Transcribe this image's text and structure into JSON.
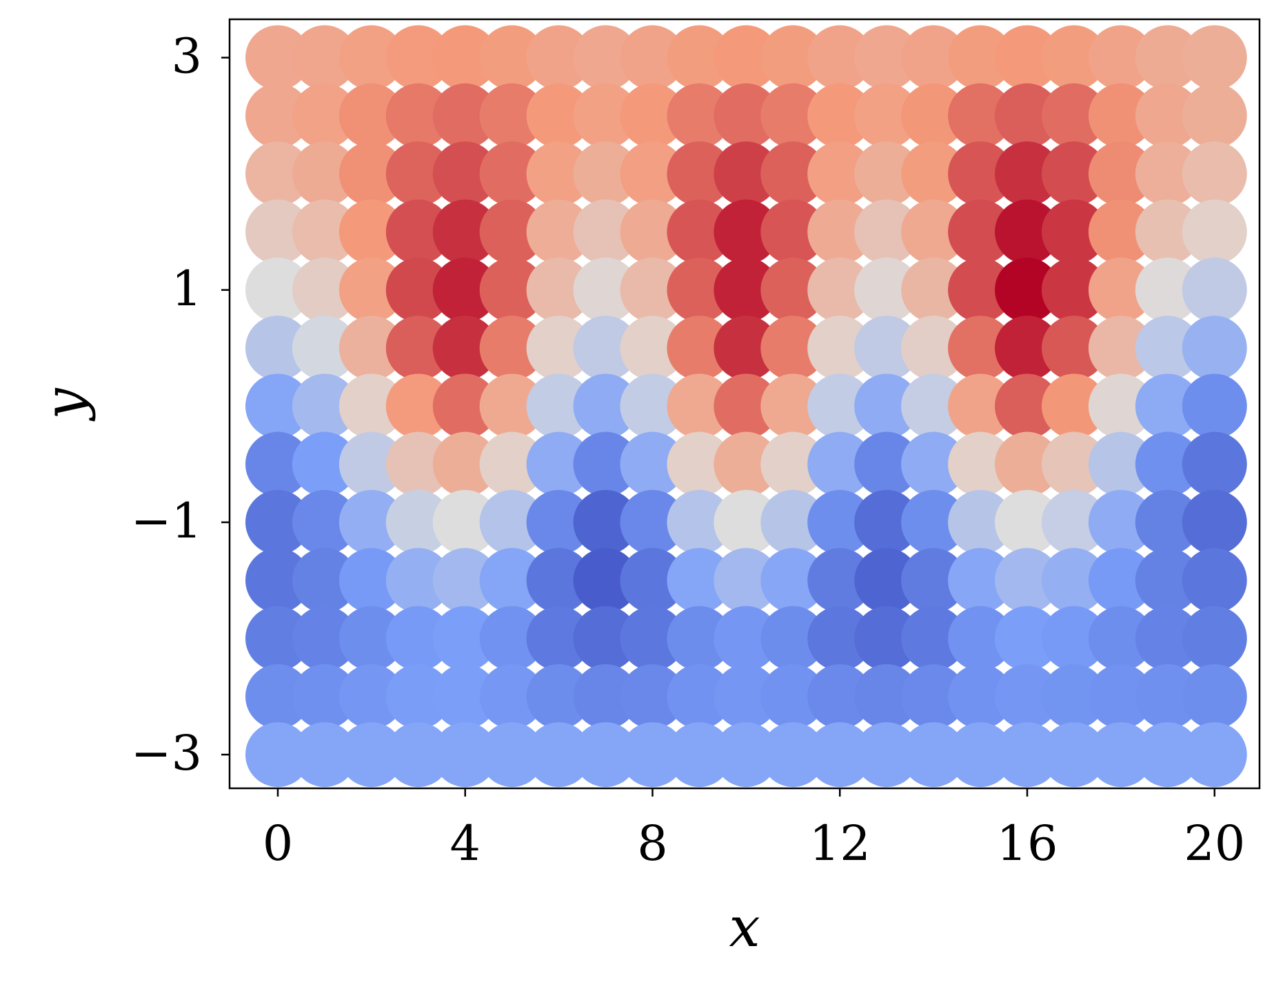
{
  "chart_data": {
    "type": "scatter",
    "xlabel": "x",
    "ylabel": "y",
    "x": [
      0,
      1,
      2,
      3,
      4,
      5,
      6,
      7,
      8,
      9,
      10,
      11,
      12,
      13,
      14,
      15,
      16,
      17,
      18,
      19,
      20
    ],
    "y": [
      3,
      2.5,
      2,
      1.5,
      1,
      0.5,
      0,
      -0.5,
      -1,
      -1.5,
      -2,
      -2.5,
      -3
    ],
    "values": [
      [
        0.4,
        0.41,
        0.45,
        0.49,
        0.5,
        0.48,
        0.43,
        0.4,
        0.43,
        0.48,
        0.5,
        0.48,
        0.43,
        0.4,
        0.43,
        0.48,
        0.5,
        0.48,
        0.43,
        0.37,
        0.35
      ],
      [
        0.4,
        0.44,
        0.53,
        0.61,
        0.65,
        0.6,
        0.5,
        0.45,
        0.5,
        0.6,
        0.65,
        0.6,
        0.5,
        0.45,
        0.51,
        0.64,
        0.7,
        0.65,
        0.53,
        0.4,
        0.35
      ],
      [
        0.3,
        0.37,
        0.53,
        0.68,
        0.75,
        0.65,
        0.45,
        0.35,
        0.46,
        0.69,
        0.8,
        0.69,
        0.46,
        0.35,
        0.48,
        0.73,
        0.85,
        0.76,
        0.55,
        0.34,
        0.25
      ],
      [
        0.15,
        0.25,
        0.5,
        0.75,
        0.85,
        0.69,
        0.36,
        0.2,
        0.38,
        0.73,
        0.9,
        0.73,
        0.38,
        0.2,
        0.39,
        0.76,
        0.95,
        0.83,
        0.53,
        0.22,
        0.1
      ],
      [
        0,
        0.13,
        0.45,
        0.77,
        0.9,
        0.69,
        0.26,
        0.05,
        0.26,
        0.69,
        0.9,
        0.69,
        0.26,
        0.05,
        0.29,
        0.76,
        1,
        0.83,
        0.43,
        0.02,
        -0.15
      ],
      [
        -0.2,
        -0.05,
        0.33,
        0.7,
        0.85,
        0.6,
        0.1,
        -0.15,
        0.1,
        0.6,
        0.85,
        0.6,
        0.1,
        -0.15,
        0.11,
        0.64,
        0.9,
        0.72,
        0.28,
        -0.17,
        -0.35
      ],
      [
        -0.45,
        -0.29,
        0.1,
        0.49,
        0.65,
        0.39,
        -0.14,
        -0.4,
        -0.14,
        0.39,
        0.65,
        0.39,
        -0.14,
        -0.4,
        -0.13,
        0.43,
        0.7,
        0.51,
        0.05,
        -0.41,
        -0.6
      ],
      [
        -0.65,
        -0.5,
        -0.15,
        0.2,
        0.35,
        0.1,
        -0.4,
        -0.65,
        -0.4,
        0.1,
        0.35,
        0.1,
        -0.4,
        -0.65,
        -0.4,
        0.1,
        0.35,
        0.19,
        -0.2,
        -0.59,
        -0.75
      ],
      [
        -0.75,
        -0.64,
        -0.38,
        -0.11,
        0,
        -0.21,
        -0.64,
        -0.85,
        -0.64,
        -0.21,
        0,
        -0.2,
        -0.6,
        -0.8,
        -0.6,
        -0.2,
        0,
        -0.12,
        -0.4,
        -0.68,
        -0.8
      ],
      [
        -0.75,
        -0.68,
        -0.53,
        -0.37,
        -0.3,
        -0.45,
        -0.75,
        -0.9,
        -0.75,
        -0.45,
        -0.3,
        -0.44,
        -0.71,
        -0.85,
        -0.71,
        -0.44,
        -0.3,
        -0.37,
        -0.53,
        -0.68,
        -0.75
      ],
      [
        -0.7,
        -0.67,
        -0.6,
        -0.53,
        -0.5,
        -0.58,
        -0.73,
        -0.8,
        -0.74,
        -0.61,
        -0.55,
        -0.61,
        -0.74,
        -0.8,
        -0.73,
        -0.58,
        -0.5,
        -0.53,
        -0.6,
        -0.67,
        -0.7
      ],
      [
        -0.6,
        -0.59,
        -0.55,
        -0.51,
        -0.5,
        -0.54,
        -0.61,
        -0.65,
        -0.64,
        -0.58,
        -0.55,
        -0.58,
        -0.63,
        -0.65,
        -0.63,
        -0.58,
        -0.55,
        -0.56,
        -0.58,
        -0.59,
        -0.6
      ],
      [
        -0.45,
        -0.45,
        -0.45,
        -0.45,
        -0.45,
        -0.45,
        -0.45,
        -0.45,
        -0.45,
        -0.45,
        -0.45,
        -0.45,
        -0.45,
        -0.45,
        -0.45,
        -0.45,
        -0.45,
        -0.45,
        -0.45,
        -0.45,
        -0.45
      ]
    ],
    "colormap": [
      "#3b4cc0",
      "#7b9ff9",
      "#dddddd",
      "#f49a7b",
      "#b40426"
    ],
    "clim": [
      -1,
      1
    ],
    "xlim": [
      -1.03,
      20.96
    ],
    "ylim": [
      -3.29,
      3.33
    ],
    "xticks": [
      0,
      4,
      8,
      12,
      16,
      20
    ],
    "yticks": [
      {
        "value": -3,
        "label": "−3"
      },
      {
        "value": -1,
        "label": "−1"
      },
      1,
      3
    ]
  }
}
